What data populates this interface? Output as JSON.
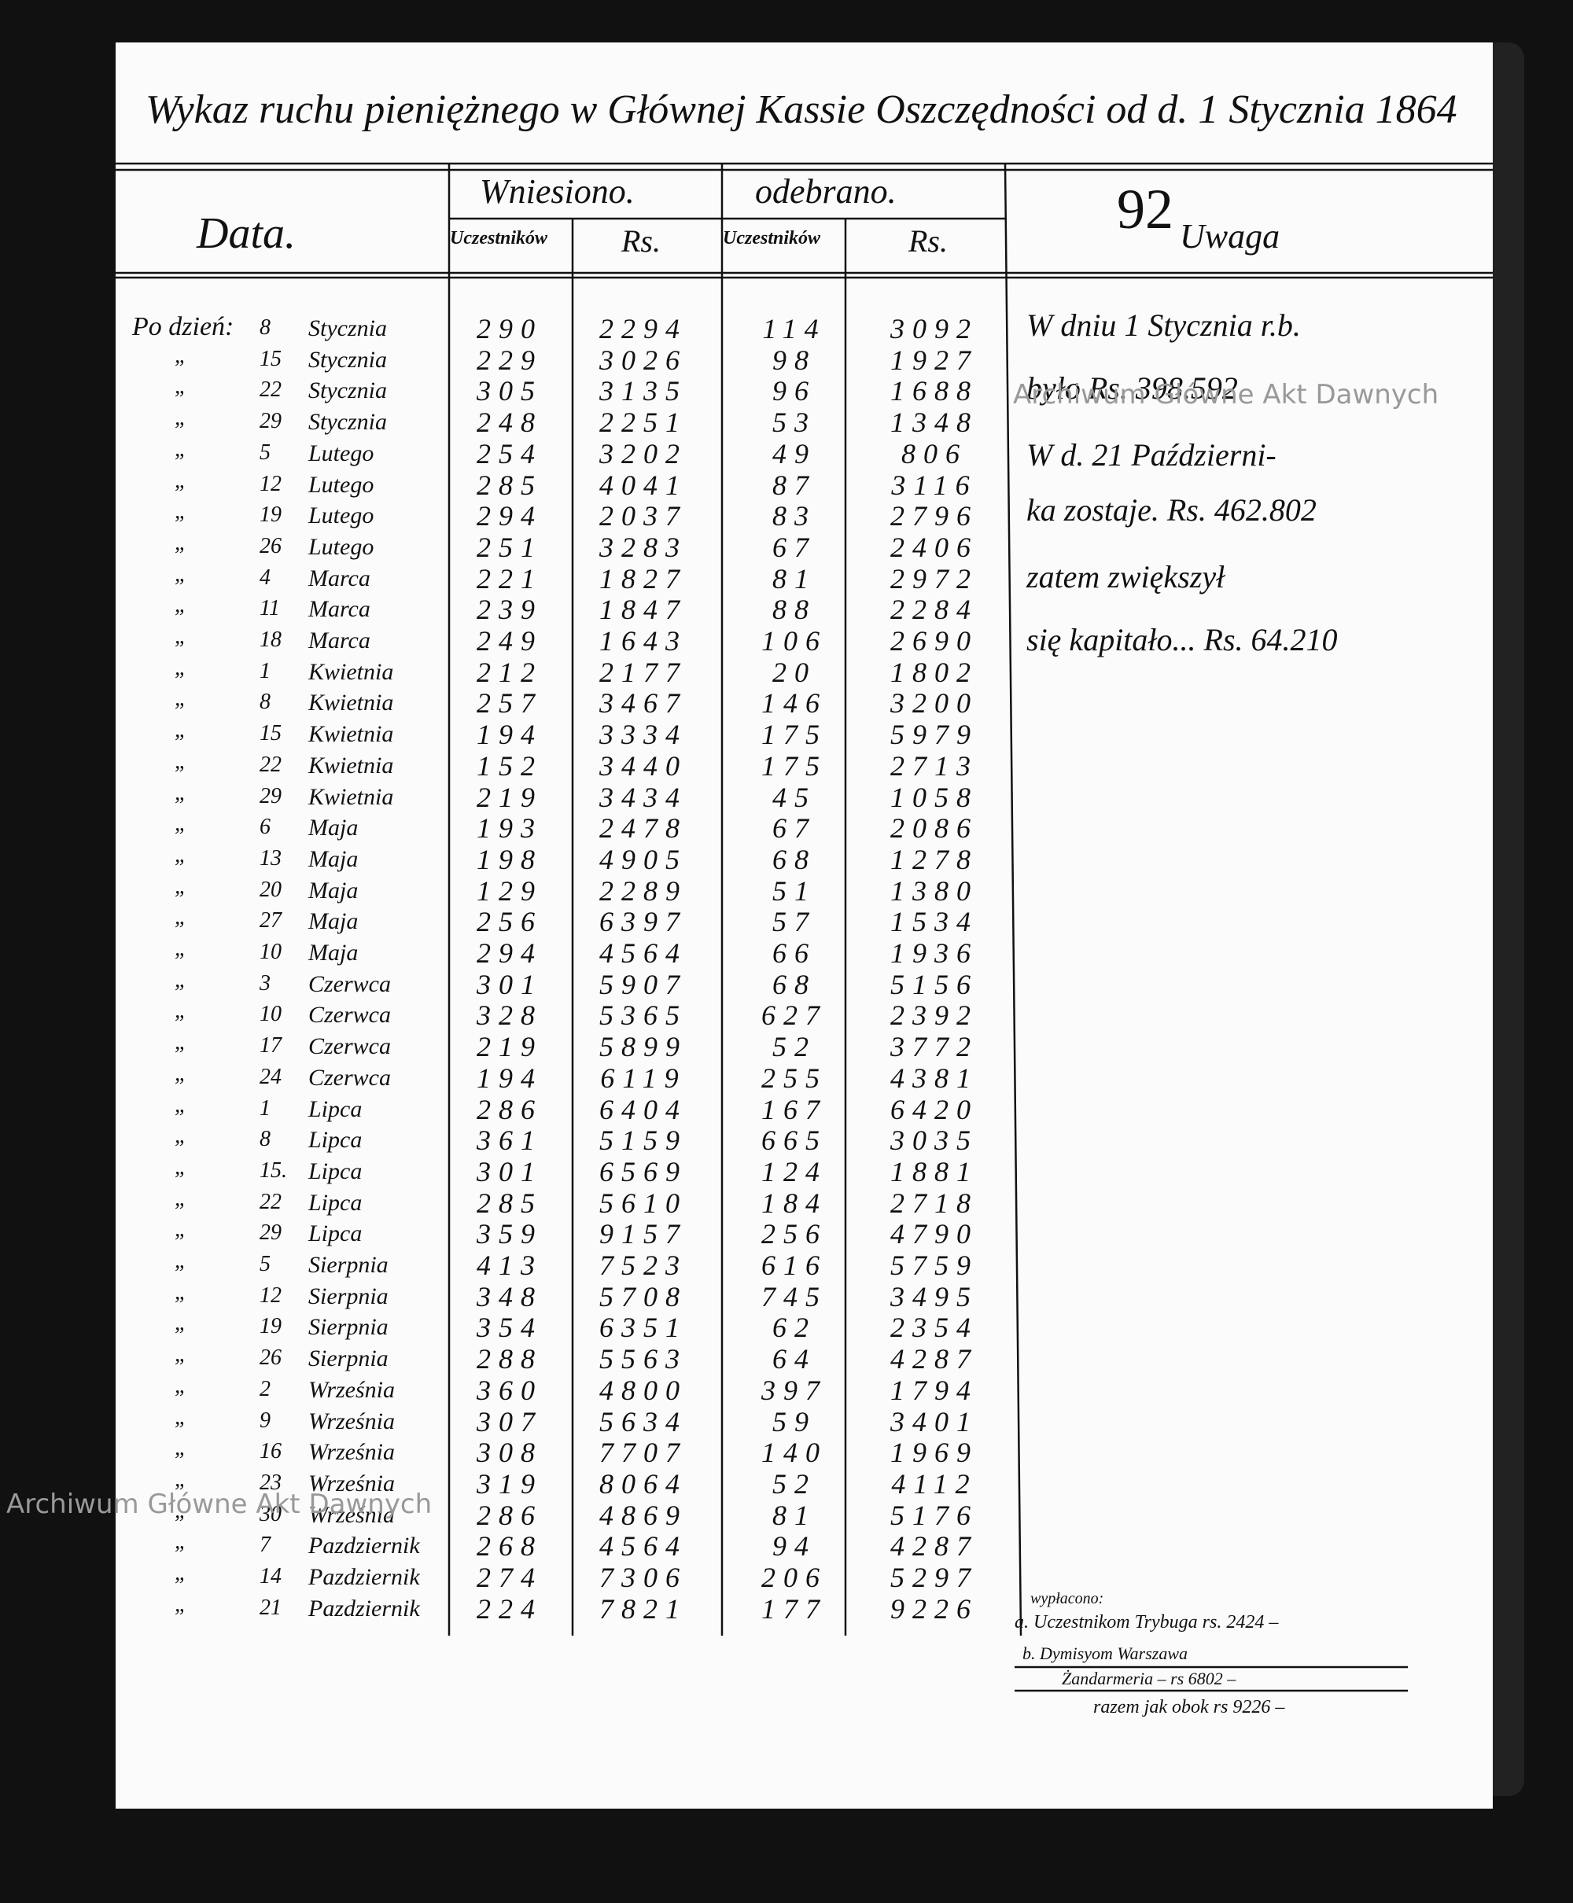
{
  "header": {
    "title": "Wykaz ruchu pieniężnego w Głównej Kassie Oszczędności od d. 1 Stycznia 1864",
    "page_number": "92",
    "date_col": "Data.",
    "deposited": "Wniesiono.",
    "withdrawn": "odebrano.",
    "participants_1": "Uczestników",
    "rs_1": "Rs.",
    "participants_2": "Uczestników",
    "rs_2": "Rs.",
    "remarks_col": "Uwaga"
  },
  "table": {
    "rows": [
      [
        "Po dzień:",
        "8",
        "Stycznia",
        290,
        2294,
        114,
        3092
      ],
      [
        "„",
        "15",
        "Stycznia",
        229,
        3026,
        98,
        1927
      ],
      [
        "„",
        "22",
        "Stycznia",
        305,
        3135,
        96,
        1688
      ],
      [
        "„",
        "29",
        "Stycznia",
        248,
        2251,
        53,
        1348
      ],
      [
        "„",
        "5",
        "Lutego",
        254,
        3202,
        49,
        806
      ],
      [
        "„",
        "12",
        "Lutego",
        285,
        4041,
        87,
        3116
      ],
      [
        "„",
        "19",
        "Lutego",
        294,
        2037,
        83,
        2796
      ],
      [
        "„",
        "26",
        "Lutego",
        251,
        3283,
        67,
        2406
      ],
      [
        "„",
        "4",
        "Marca",
        221,
        1827,
        81,
        2972
      ],
      [
        "„",
        "11",
        "Marca",
        239,
        1847,
        88,
        2284
      ],
      [
        "„",
        "18",
        "Marca",
        249,
        1643,
        106,
        2690
      ],
      [
        "„",
        "1",
        "Kwietnia",
        212,
        2177,
        20,
        1802
      ],
      [
        "„",
        "8",
        "Kwietnia",
        257,
        3467,
        146,
        3200
      ],
      [
        "„",
        "15",
        "Kwietnia",
        194,
        3334,
        175,
        5979
      ],
      [
        "„",
        "22",
        "Kwietnia",
        152,
        3440,
        175,
        2713
      ],
      [
        "„",
        "29",
        "Kwietnia",
        219,
        3434,
        45,
        1058
      ],
      [
        "„",
        "6",
        "Maja",
        193,
        2478,
        67,
        2086
      ],
      [
        "„",
        "13",
        "Maja",
        198,
        4905,
        68,
        1278
      ],
      [
        "„",
        "20",
        "Maja",
        129,
        2289,
        51,
        1380
      ],
      [
        "„",
        "27",
        "Maja",
        256,
        6397,
        57,
        1534
      ],
      [
        "„",
        "10",
        "Maja",
        294,
        4564,
        66,
        1936
      ],
      [
        "„",
        "3",
        "Czerwca",
        301,
        5907,
        68,
        5156
      ],
      [
        "„",
        "10",
        "Czerwca",
        328,
        5365,
        627,
        2392
      ],
      [
        "„",
        "17",
        "Czerwca",
        219,
        5899,
        52,
        3772
      ],
      [
        "„",
        "24",
        "Czerwca",
        194,
        6119,
        255,
        4381
      ],
      [
        "„",
        "1",
        "Lipca",
        286,
        6404,
        167,
        6420
      ],
      [
        "„",
        "8",
        "Lipca",
        361,
        5159,
        665,
        3035
      ],
      [
        "„",
        "15.",
        "Lipca",
        301,
        6569,
        124,
        1881
      ],
      [
        "„",
        "22",
        "Lipca",
        285,
        5610,
        184,
        2718
      ],
      [
        "„",
        "29",
        "Lipca",
        359,
        9157,
        256,
        4790
      ],
      [
        "„",
        "5",
        "Sierpnia",
        413,
        7523,
        616,
        5759
      ],
      [
        "„",
        "12",
        "Sierpnia",
        348,
        5708,
        745,
        3495
      ],
      [
        "„",
        "19",
        "Sierpnia",
        354,
        6351,
        62,
        2354
      ],
      [
        "„",
        "26",
        "Sierpnia",
        288,
        5563,
        64,
        4287
      ],
      [
        "„",
        "2",
        "Września",
        360,
        4800,
        397,
        1794
      ],
      [
        "„",
        "9",
        "Września",
        307,
        5634,
        59,
        3401
      ],
      [
        "„",
        "16",
        "Września",
        308,
        7707,
        140,
        1969
      ],
      [
        "„",
        "23",
        "Września",
        319,
        8064,
        52,
        4112
      ],
      [
        "„",
        "30",
        "Września",
        286,
        4869,
        81,
        5176
      ],
      [
        "„",
        "7",
        "Pazdziernik",
        268,
        4564,
        94,
        4287
      ],
      [
        "„",
        "14",
        "Pazdziernik",
        274,
        7306,
        206,
        5297
      ],
      [
        "„",
        "21",
        "Pazdziernik",
        224,
        7821,
        177,
        9226
      ]
    ]
  },
  "remarks": [
    "W dniu 1 Stycznia r.b.",
    "było Rs. 398.592",
    "W d. 21 Październi-",
    "ka zostaje. Rs. 462.802",
    "zatem zwiększył",
    "się kapitało... Rs. 64.210"
  ],
  "notes": [
    "wypłacono:",
    "a. Uczestnikom Trybuga rs. 2424 –",
    "b. Dymisyom Warszawa",
    "Żandarmeria – rs 6802 –",
    "razem jak obok rs 9226 –"
  ],
  "watermark": "Archiwum Główne Akt Dawnych"
}
